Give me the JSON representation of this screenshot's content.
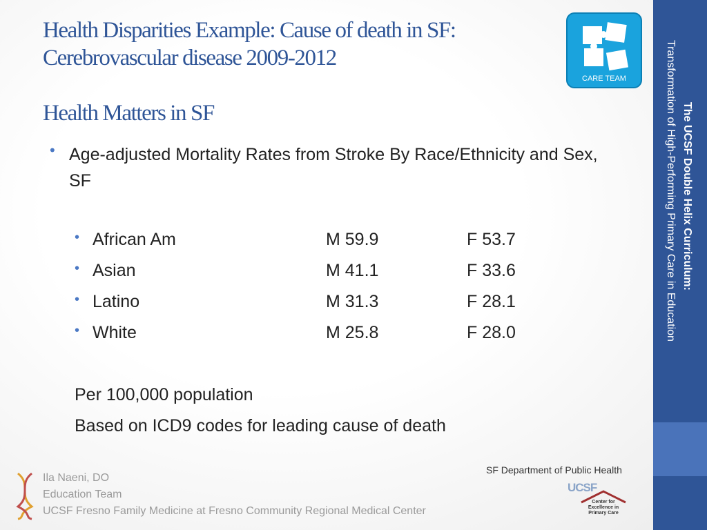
{
  "title": [
    "Health Disparities Example: Cause of death in SF:",
    "Cerebrovascular disease 2009-2012"
  ],
  "subtitle": "Health Matters in SF",
  "bullet": "Age-adjusted Mortality Rates from Stroke By Race/Ethnicity and Sex, SF",
  "table": {
    "rows": [
      [
        "African Am",
        "M 59.9",
        "F 53.7"
      ],
      [
        "Asian",
        "M 41.1",
        "F 33.6"
      ],
      [
        "Latino",
        "M 31.3",
        "F 28.1"
      ],
      [
        "White",
        "M 25.8",
        "F 28.0"
      ]
    ]
  },
  "notes": [
    "Per 100,000 population",
    "Based on ICD9 codes for leading cause of death"
  ],
  "source": "SF Department of Public Health",
  "footer": [
    "Ila Naeni, DO",
    "Education Team",
    "UCSF Fresno Family Medicine at Fresno Community Regional Medical Center"
  ],
  "sidebar": [
    "The UCSF Double Helix Curriculum:",
    "Transformation of High-Performing Primary Care in Education"
  ],
  "logo": "CARE TEAM",
  "logos": [
    "UCSF",
    "Center for Excellence in Primary Care"
  ]
}
